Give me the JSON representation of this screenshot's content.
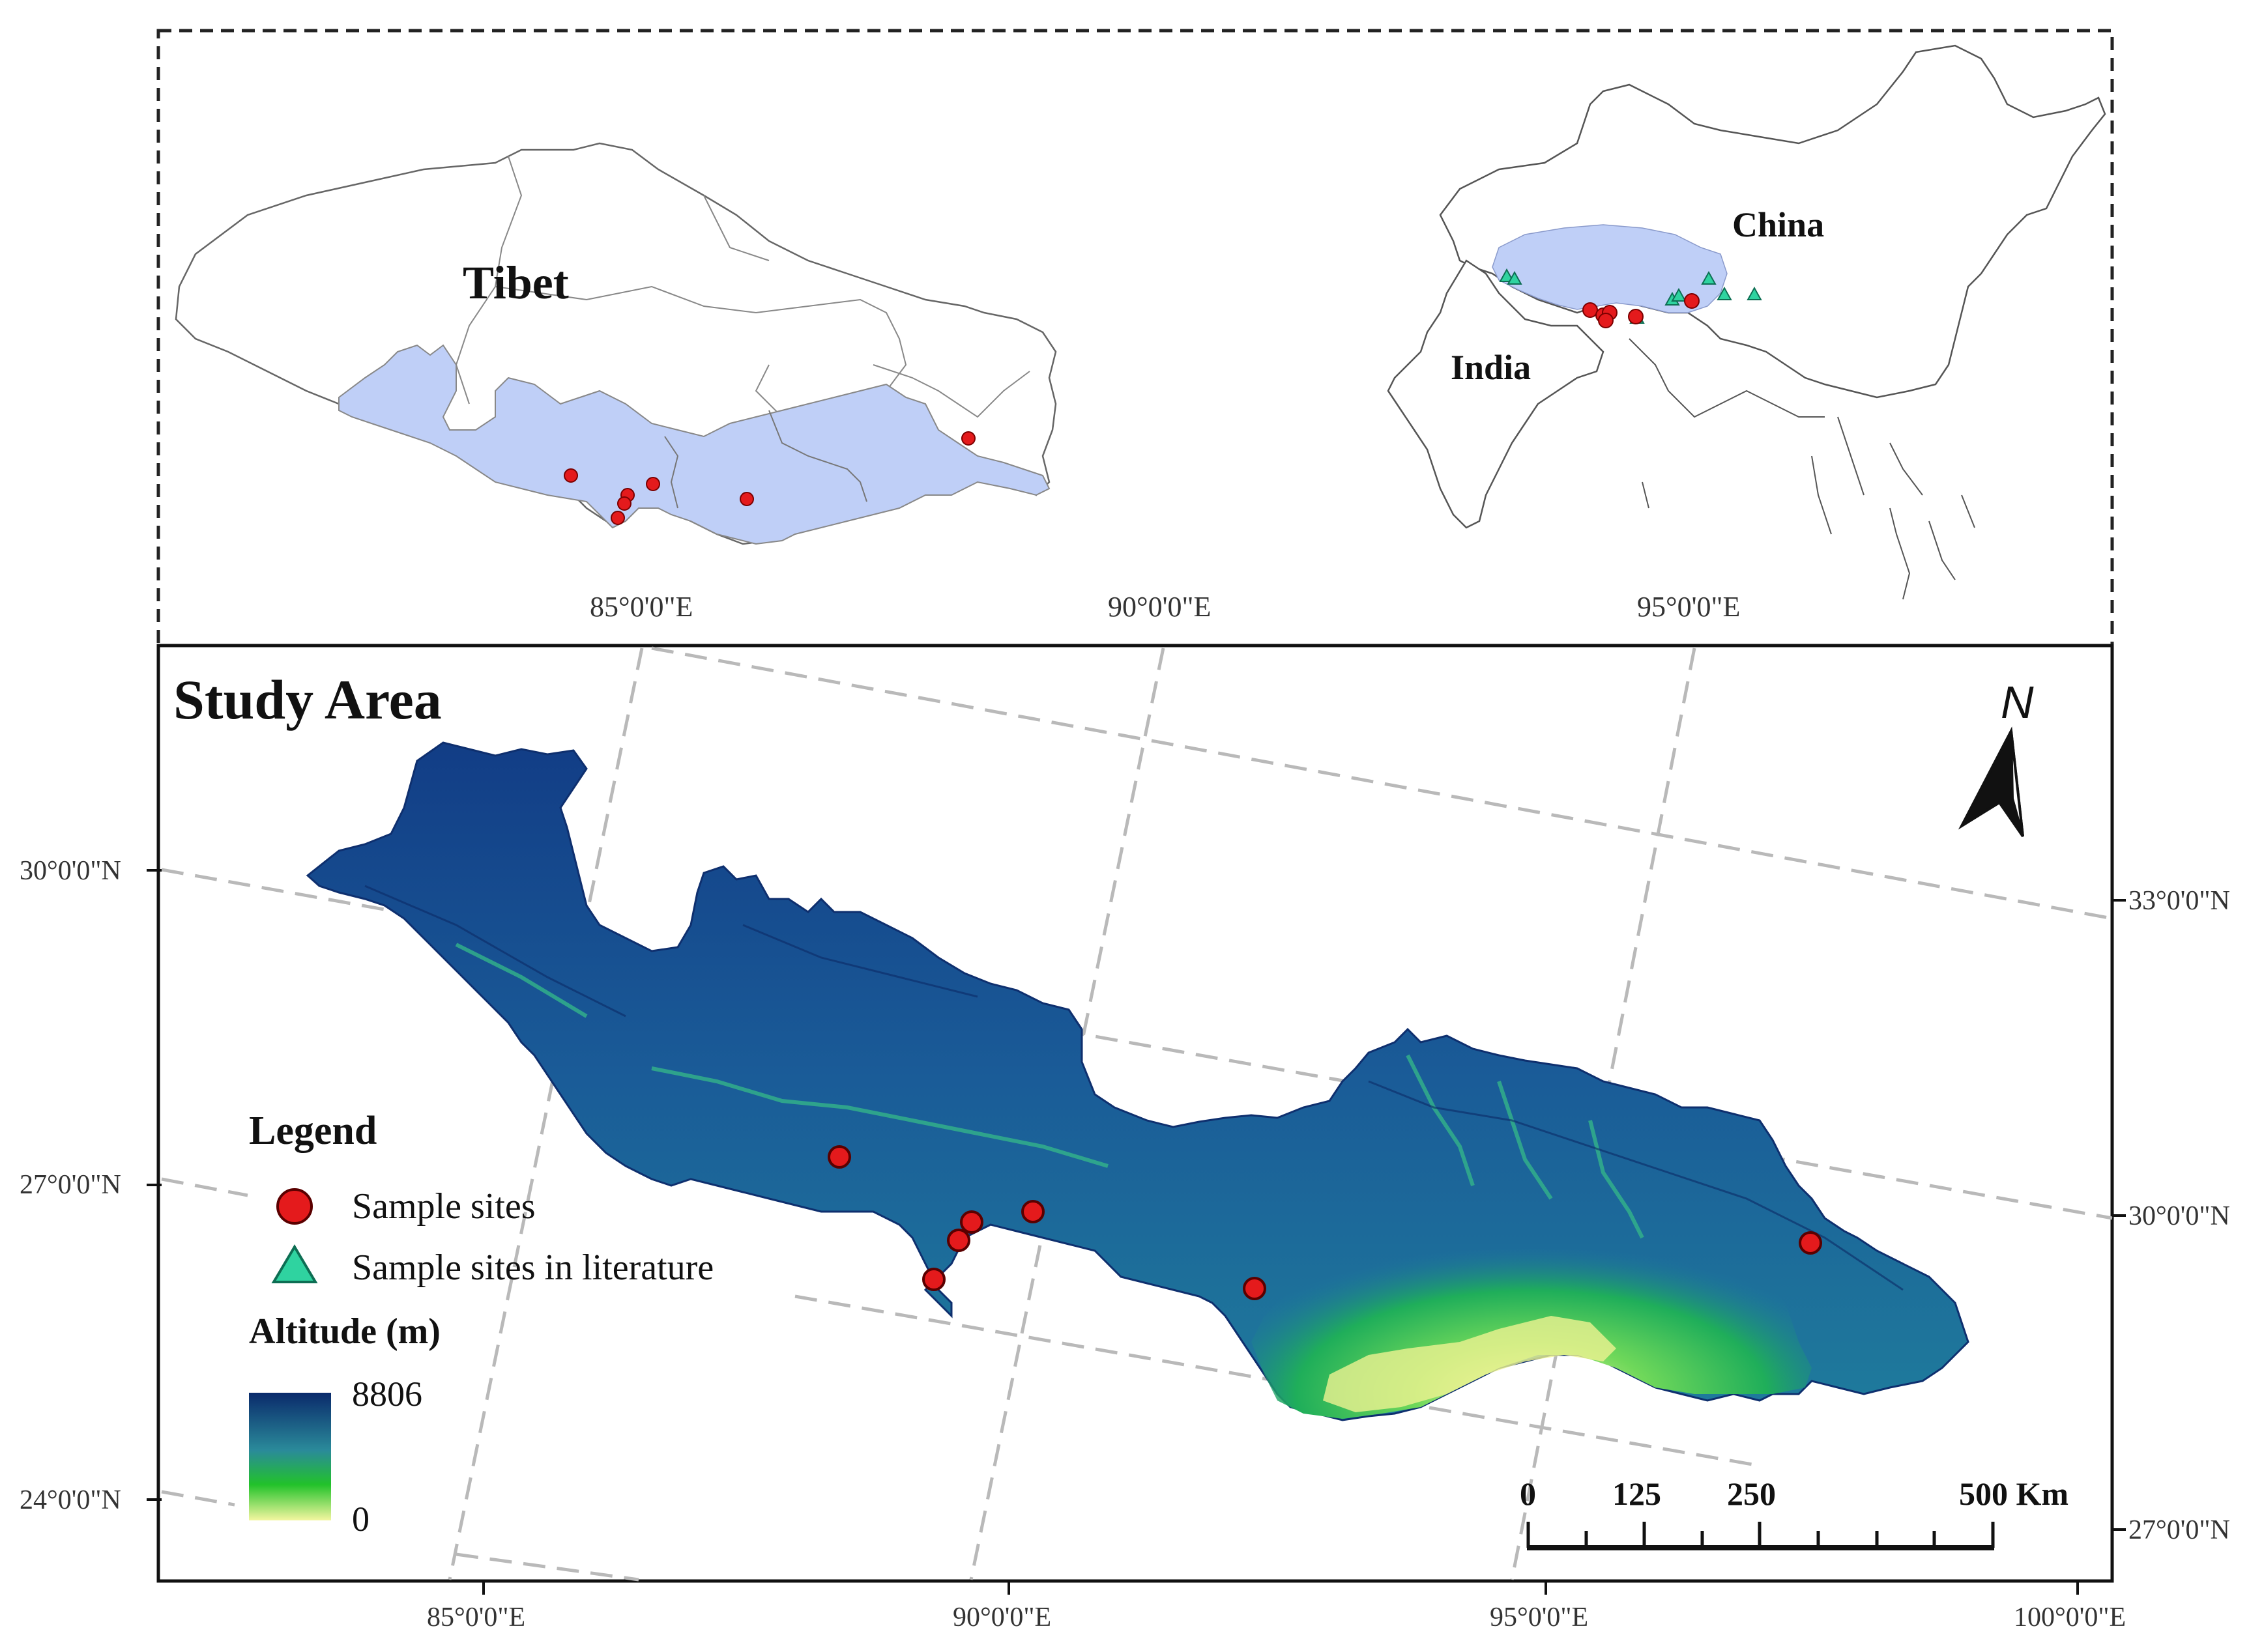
{
  "inset_left": {
    "region_label": "Tibet"
  },
  "inset_right": {
    "country_label_1": "China",
    "country_label_2": "India"
  },
  "inset_ticks": [
    "85°0'0\"E",
    "90°0'0\"E",
    "95°0'0\"E"
  ],
  "main": {
    "title": "Study Area",
    "north_label": "N",
    "lat_left": [
      "30°0'0\"N",
      "27°0'0\"N",
      "24°0'0\"N"
    ],
    "lat_right": [
      "33°0'0\"N",
      "30°0'0\"N",
      "27°0'0\"N"
    ],
    "lon_bottom": [
      "85°0'0\"E",
      "90°0'0\"E",
      "95°0'0\"E",
      "100°0'0\"E"
    ]
  },
  "legend": {
    "title": "Legend",
    "item_1": "Sample sites",
    "item_2": "Sample sites in literature",
    "altitude_title": "Altitude (m)",
    "altitude_max": "8806",
    "altitude_min": "0"
  },
  "scale_bar": {
    "labels": [
      "0",
      "125",
      "250",
      "500 Km"
    ]
  },
  "colors": {
    "sample_site": "#e41a1c",
    "literature_site": "#2fd3a0",
    "highlight_region": "#bfcff7",
    "altitude_high": "#0a2a6b",
    "altitude_mid": "#2a8a9a",
    "altitude_low_green": "#22c22a",
    "altitude_lowest": "#f4f6a0"
  }
}
